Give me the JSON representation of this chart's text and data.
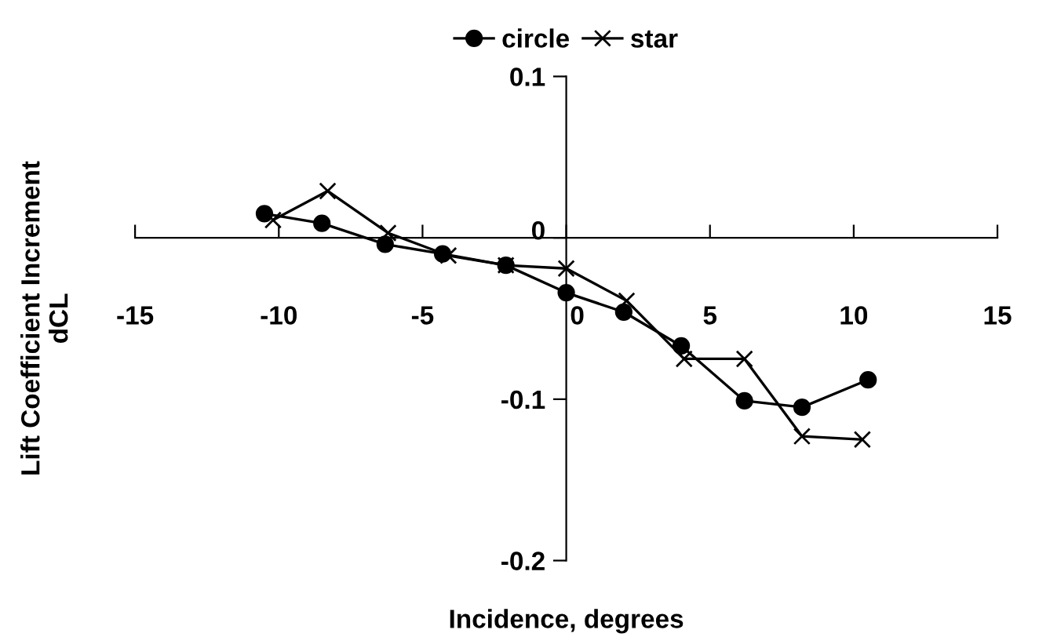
{
  "chart_data": {
    "type": "line",
    "xlabel": "Incidence, degrees",
    "ylabel": "Lift Coefficient Increment\ndCL",
    "xlim": [
      -15,
      15
    ],
    "xticks": [
      -15,
      -10,
      -5,
      0,
      5,
      10,
      15
    ],
    "ylim": [
      -0.2,
      0.1
    ],
    "yticks": [
      -0.2,
      -0.1,
      0,
      0.1
    ],
    "legend": "top",
    "line_style": "solid",
    "series": [
      {
        "name": "circle",
        "color": "#000000",
        "marker": "circle",
        "x": [
          -10.5,
          -8.5,
          -6.3,
          -4.3,
          -2.1,
          0,
          2,
          4,
          6.2,
          8.2,
          10.5
        ],
        "values": [
          0.015,
          0.009,
          -0.004,
          -0.01,
          -0.017,
          -0.034,
          -0.046,
          -0.067,
          -0.101,
          -0.105,
          -0.088
        ]
      },
      {
        "name": "star",
        "color": "#000000",
        "marker": "cross",
        "x": [
          -10.2,
          -8.3,
          -6.2,
          -4.1,
          -2.1,
          0,
          2.1,
          4.1,
          6.2,
          8.2,
          10.3
        ],
        "values": [
          0.011,
          0.029,
          0.003,
          -0.011,
          -0.017,
          -0.019,
          -0.039,
          -0.075,
          -0.075,
          -0.123,
          -0.125
        ]
      }
    ]
  }
}
